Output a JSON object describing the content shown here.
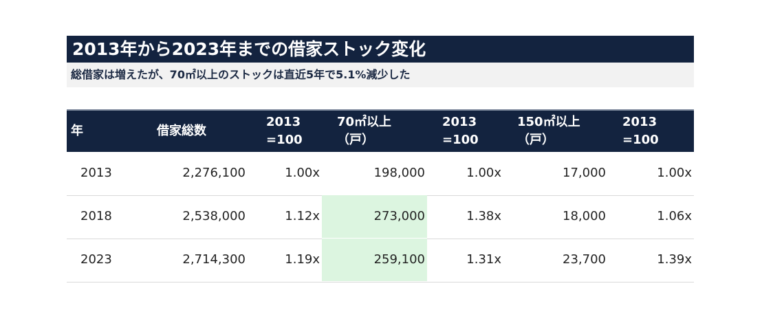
{
  "title": "2013年から2023年までの借家ストック変化",
  "subtitle": "総借家は増えたが、70㎡以上のストックは直近5年で5.1%減少した",
  "table": {
    "headers": [
      [
        "年"
      ],
      [
        "借家総数"
      ],
      [
        "2013",
        "=100"
      ],
      [
        "70㎡以上",
        "（戸）"
      ],
      [
        "2013",
        "=100"
      ],
      [
        "150㎡以上",
        "（戸）"
      ],
      [
        "2013",
        "=100"
      ]
    ],
    "rows": [
      [
        "2013",
        "2,276,100",
        "1.00x",
        "198,000",
        "1.00x",
        "17,000",
        "1.00x"
      ],
      [
        "2018",
        "2,538,000",
        "1.12x",
        "273,000",
        "1.38x",
        "18,000",
        "1.06x"
      ],
      [
        "2023",
        "2,714,300",
        "1.19x",
        "259,100",
        "1.31x",
        "23,700",
        "1.39x"
      ]
    ]
  }
}
